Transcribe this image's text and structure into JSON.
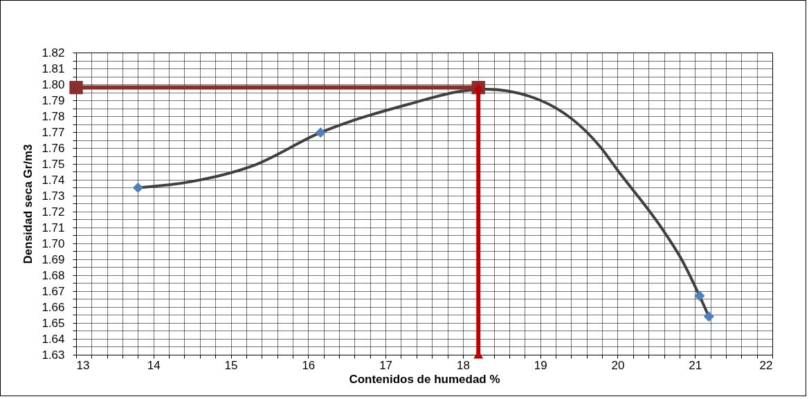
{
  "chart_data": {
    "type": "scatter",
    "xlabel": "Contenidos de humedad  %",
    "ylabel": "Densidad seca  Gr/m3",
    "xlim": [
      13,
      22
    ],
    "ylim": [
      1.63,
      1.82
    ],
    "xticks": [
      13,
      {
        "value": 13.2,
        "label": null
      },
      {
        "value": 13.4,
        "label": null
      },
      {
        "value": 13.6,
        "label": null
      },
      {
        "value": 13.8,
        "label": null
      },
      14,
      {
        "value": 14.2,
        "label": null
      },
      {
        "value": 14.4,
        "label": null
      },
      {
        "value": 14.6,
        "label": null
      },
      {
        "value": 14.8,
        "label": null
      },
      15,
      {
        "value": 15.2,
        "label": null
      },
      {
        "value": 15.4,
        "label": null
      },
      {
        "value": 15.6,
        "label": null
      },
      {
        "value": 15.8,
        "label": null
      },
      16,
      {
        "value": 16.2,
        "label": null
      },
      {
        "value": 16.4,
        "label": null
      },
      {
        "value": 16.6,
        "label": null
      },
      {
        "value": 16.8,
        "label": null
      },
      17,
      {
        "value": 17.2,
        "label": null
      },
      {
        "value": 17.4,
        "label": null
      },
      {
        "value": 17.6,
        "label": null
      },
      {
        "value": 17.8,
        "label": null
      },
      18,
      {
        "value": 18.2,
        "label": null
      },
      {
        "value": 18.4,
        "label": null
      },
      {
        "value": 18.6,
        "label": null
      },
      {
        "value": 18.8,
        "label": null
      },
      19,
      {
        "value": 19.2,
        "label": null
      },
      {
        "value": 19.4,
        "label": null
      },
      {
        "value": 19.6,
        "label": null
      },
      {
        "value": 19.8,
        "label": null
      },
      20,
      {
        "value": 20.2,
        "label": null
      },
      {
        "value": 20.4,
        "label": null
      },
      {
        "value": 20.6,
        "label": null
      },
      {
        "value": 20.8,
        "label": null
      },
      21,
      {
        "value": 21.2,
        "label": null
      },
      {
        "value": 21.4,
        "label": null
      },
      {
        "value": 21.6,
        "label": null
      },
      {
        "value": 21.8,
        "label": null
      },
      22
    ],
    "yticks": [
      1.63,
      {
        "value": 1.635,
        "label": null
      },
      1.64,
      {
        "value": 1.645,
        "label": null
      },
      1.65,
      {
        "value": 1.655,
        "label": null
      },
      1.66,
      {
        "value": 1.665,
        "label": null
      },
      1.67,
      {
        "value": 1.675,
        "label": null
      },
      1.68,
      {
        "value": 1.685,
        "label": null
      },
      1.69,
      {
        "value": 1.695,
        "label": null
      },
      {
        "value": 1.7,
        "label": "1.70"
      },
      {
        "value": 1.705,
        "label": null
      },
      1.71,
      {
        "value": 1.715,
        "label": null
      },
      1.72,
      {
        "value": 1.725,
        "label": null
      },
      1.73,
      {
        "value": 1.735,
        "label": null
      },
      1.74,
      {
        "value": 1.745,
        "label": null
      },
      1.75,
      {
        "value": 1.755,
        "label": null
      },
      1.76,
      {
        "value": 1.765,
        "label": null
      },
      1.77,
      {
        "value": 1.775,
        "label": null
      },
      1.78,
      {
        "value": 1.785,
        "label": null
      },
      1.79,
      {
        "value": 1.795,
        "label": null
      },
      {
        "value": 1.8,
        "label": "1.80"
      },
      {
        "value": 1.805,
        "label": null
      },
      1.81,
      {
        "value": 1.815,
        "label": null
      },
      1.82
    ],
    "grid": true,
    "series": [
      {
        "type": "line",
        "marker": "none",
        "color": "#404040",
        "x": [
          13.8,
          14.38,
          15.28,
          16.16,
          17.32,
          18.0,
          18.3,
          19.0,
          19.78,
          20.0,
          20.57,
          20.81,
          21.18
        ],
        "values": [
          1.735,
          1.738,
          1.7487,
          1.7697,
          1.7878,
          1.7959,
          1.797,
          1.79,
          1.7604,
          1.746,
          1.7096,
          1.6914,
          1.654
        ]
      },
      {
        "marker": "diamond",
        "color": "#4f81bd",
        "x": [
          13.8,
          16.16,
          21.06,
          21.18
        ],
        "values": [
          1.735,
          1.7697,
          1.667,
          1.654
        ]
      },
      {
        "type": "line",
        "marker": "square",
        "color": "#8b2e2e",
        "x": [
          13,
          18.2
        ],
        "values": [
          1.798,
          1.798
        ]
      },
      {
        "type": "line",
        "marker": "triangle",
        "color": "#c00000",
        "x": [
          18.2,
          18.2
        ],
        "values": [
          1.798,
          1.63
        ]
      }
    ]
  }
}
